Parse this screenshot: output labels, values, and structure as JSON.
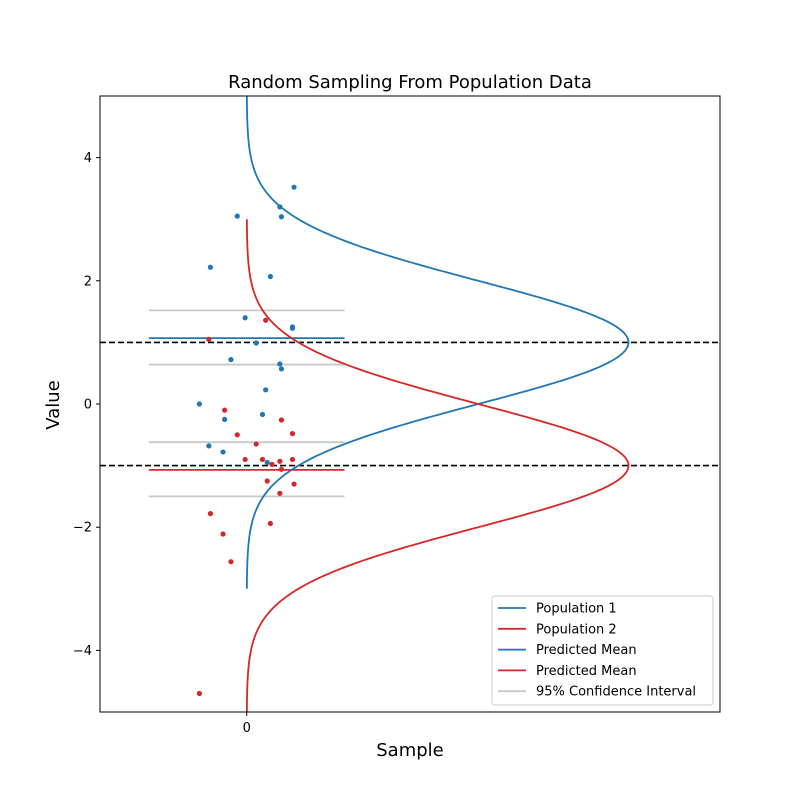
{
  "chart_data": {
    "type": "scatter",
    "title": "Random Sampling From Population Data",
    "xlabel": "Sample",
    "ylabel": "Value",
    "xlim": [
      -0.93,
      3.0
    ],
    "ylim": [
      -5,
      5
    ],
    "xticks": [
      0
    ],
    "xtick_labels": [
      "0"
    ],
    "yticks": [
      -4,
      -2,
      0,
      2,
      4
    ],
    "ytick_labels": [
      "−4",
      "−2",
      "0",
      "2",
      "4"
    ],
    "legend_position": "lower right",
    "colors": {
      "pop1": "#1f77b4",
      "pop2": "#d62728",
      "ci": "#c8c8c8",
      "ref": "#000000"
    },
    "reference_lines": [
      1,
      -1
    ],
    "population_curves": [
      {
        "name": "Population 1",
        "color": "#1f77b4",
        "mean": 1,
        "sd": 1,
        "y_range": [
          -3,
          5
        ],
        "peak_x": 2.42
      },
      {
        "name": "Population 2",
        "color": "#d62728",
        "mean": -1,
        "sd": 1,
        "y_range": [
          -5,
          3
        ],
        "peak_x": 2.42
      }
    ],
    "predicted_means": [
      {
        "name": "Predicted Mean",
        "color": "#1f77b4",
        "value": 1.07,
        "x_range": [
          -0.62,
          0.62
        ]
      },
      {
        "name": "Predicted Mean",
        "color": "#d62728",
        "value": -1.07,
        "x_range": [
          -0.62,
          0.62
        ]
      }
    ],
    "confidence_intervals": {
      "name": "95% Confidence Interval",
      "x_range": [
        -0.62,
        0.62
      ],
      "values": [
        1.52,
        0.64,
        -0.62,
        -1.5
      ]
    },
    "series": [
      {
        "name": "Population 1 sample",
        "color": "#1f77b4",
        "points": [
          [
            0.3,
            3.52
          ],
          [
            -0.06,
            3.05
          ],
          [
            0.21,
            3.2
          ],
          [
            0.22,
            3.04
          ],
          [
            -0.23,
            2.22
          ],
          [
            0.15,
            2.07
          ],
          [
            -0.01,
            1.4
          ],
          [
            0.29,
            1.25
          ],
          [
            0.29,
            1.23
          ],
          [
            0.06,
            0.99
          ],
          [
            -0.1,
            0.72
          ],
          [
            0.21,
            0.65
          ],
          [
            0.22,
            0.57
          ],
          [
            0.12,
            0.23
          ],
          [
            -0.3,
            0.0
          ],
          [
            0.1,
            -0.17
          ],
          [
            -0.14,
            -0.25
          ],
          [
            -0.24,
            -0.68
          ],
          [
            -0.15,
            -0.78
          ],
          [
            0.13,
            -0.95
          ]
        ]
      },
      {
        "name": "Population 2 sample",
        "color": "#d62728",
        "points": [
          [
            0.12,
            1.36
          ],
          [
            -0.24,
            1.05
          ],
          [
            -0.14,
            -0.1
          ],
          [
            0.22,
            -0.26
          ],
          [
            -0.06,
            -0.5
          ],
          [
            0.29,
            -0.48
          ],
          [
            0.06,
            -0.65
          ],
          [
            -0.01,
            -0.9
          ],
          [
            0.1,
            -0.9
          ],
          [
            0.21,
            -0.93
          ],
          [
            0.29,
            -0.9
          ],
          [
            0.16,
            -0.98
          ],
          [
            0.22,
            -1.06
          ],
          [
            0.13,
            -1.25
          ],
          [
            0.3,
            -1.3
          ],
          [
            0.21,
            -1.45
          ],
          [
            -0.23,
            -1.78
          ],
          [
            0.15,
            -1.94
          ],
          [
            -0.15,
            -2.11
          ],
          [
            -0.1,
            -2.56
          ],
          [
            -0.3,
            -4.7
          ]
        ]
      }
    ],
    "legend": [
      {
        "label": "Population 1",
        "color": "#1f77b4"
      },
      {
        "label": "Population 2",
        "color": "#d62728"
      },
      {
        "label": "Predicted Mean",
        "color": "#1f77b4"
      },
      {
        "label": "Predicted Mean",
        "color": "#d62728"
      },
      {
        "label": "95% Confidence Interval",
        "color": "#c8c8c8"
      }
    ]
  }
}
